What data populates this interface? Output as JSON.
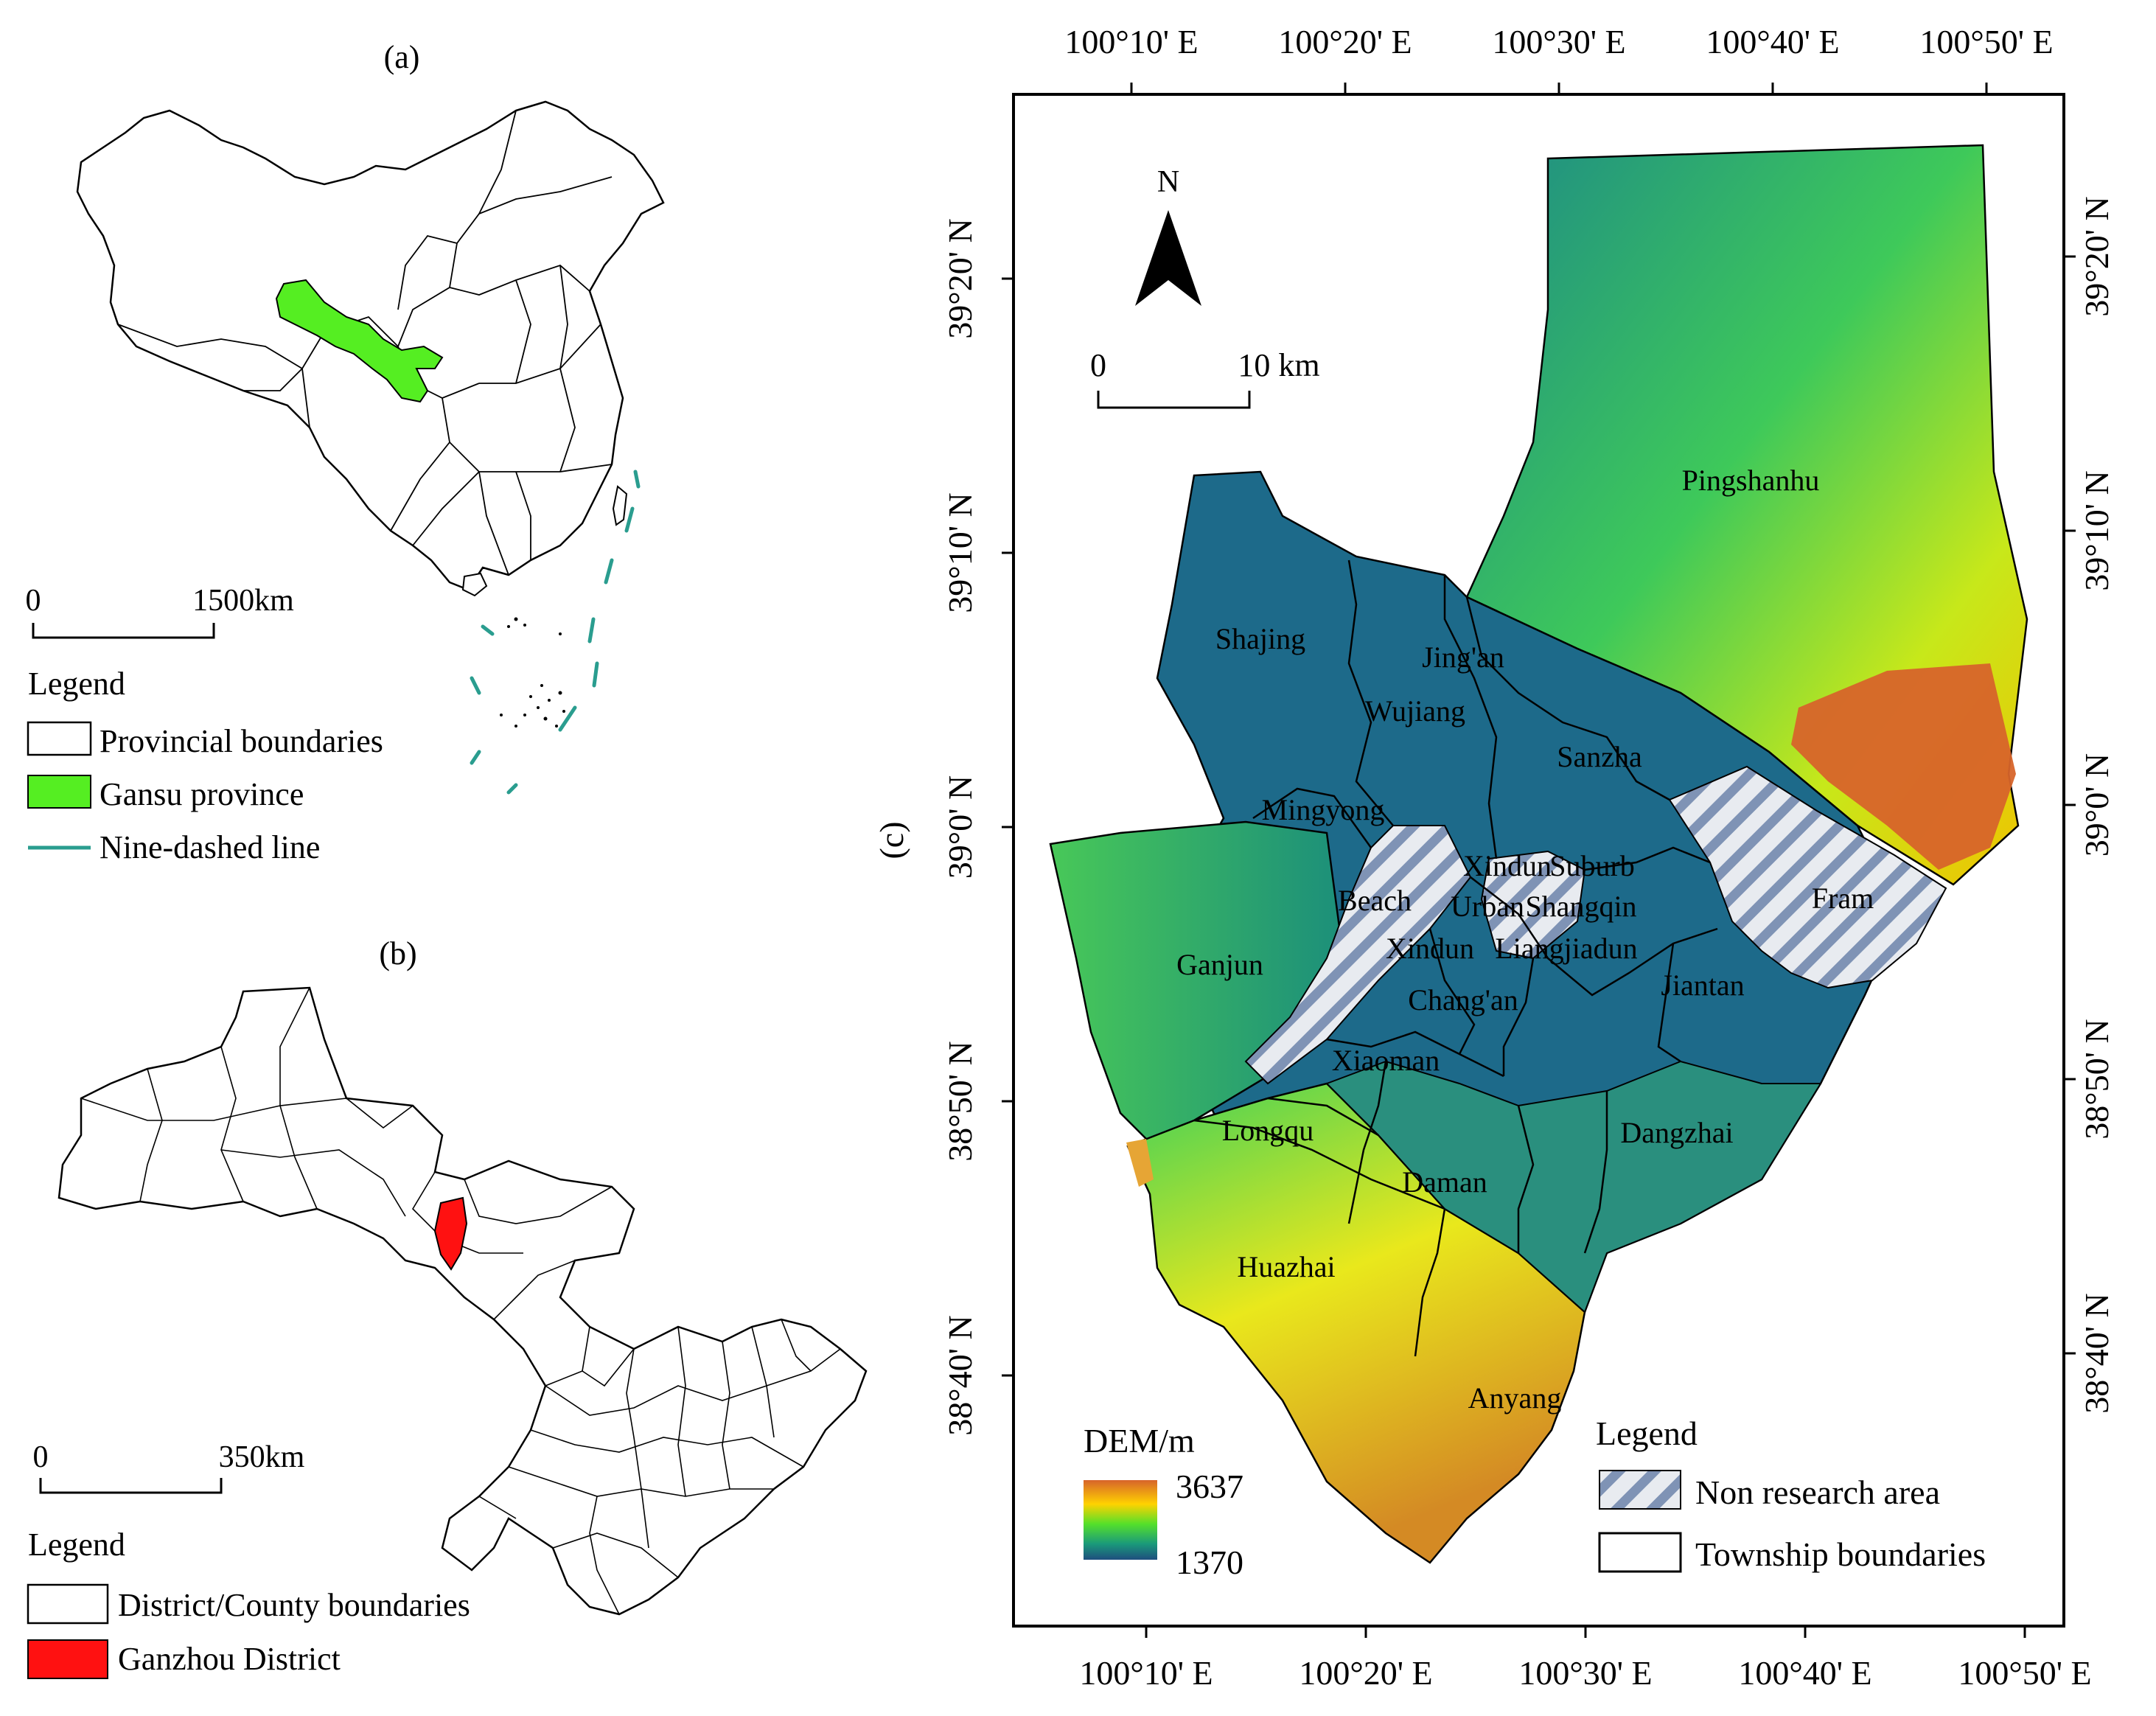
{
  "panel_a": {
    "label": "(a)",
    "scale": {
      "zero": "0",
      "end": "1500km"
    },
    "legend": {
      "title": "Legend",
      "items": [
        {
          "label": "Provincial boundaries",
          "color": "#ffffff"
        },
        {
          "label": "Gansu province",
          "color": "#55ee22"
        },
        {
          "label": "Nine-dashed line",
          "color": "#2a9d8f"
        }
      ]
    }
  },
  "panel_b": {
    "label": "(b)",
    "scale": {
      "zero": "0",
      "end": "350km"
    },
    "legend": {
      "title": "Legend",
      "items": [
        {
          "label": "District/County boundaries",
          "color": "#ffffff"
        },
        {
          "label": "Ganzhou District",
          "color": "#ff1111"
        }
      ]
    }
  },
  "panel_c": {
    "label": "(c)",
    "north": "N",
    "scale": {
      "zero": "0",
      "end": "10 km"
    },
    "lon_labels": [
      "100°10' E",
      "100°20' E",
      "100°30' E",
      "100°40' E",
      "100°50' E"
    ],
    "lat_labels": [
      "39°20' N",
      "39°10' N",
      "39°0' N",
      "38°50' N",
      "38°40' N"
    ],
    "dem": {
      "title": "DEM/m",
      "max": "3637",
      "min": "1370"
    },
    "legend": {
      "title": "Legend",
      "items": [
        {
          "label": "Non research area"
        },
        {
          "label": "Township boundaries"
        }
      ]
    },
    "townships": [
      "Pingshanhu",
      "Shajing",
      "Jing'an",
      "Wujiang",
      "Sanzha",
      "Mingyong",
      "Beach",
      "Xindun",
      "Suburb",
      "Urban",
      "Shangqin",
      "Fram",
      "Ganjun",
      "Xindun",
      "Liangjiadun",
      "Jiantan",
      "Chang'an",
      "Xiaoman",
      "Longqu",
      "Dangzhai",
      "Daman",
      "Huazhai",
      "Anyang"
    ]
  }
}
